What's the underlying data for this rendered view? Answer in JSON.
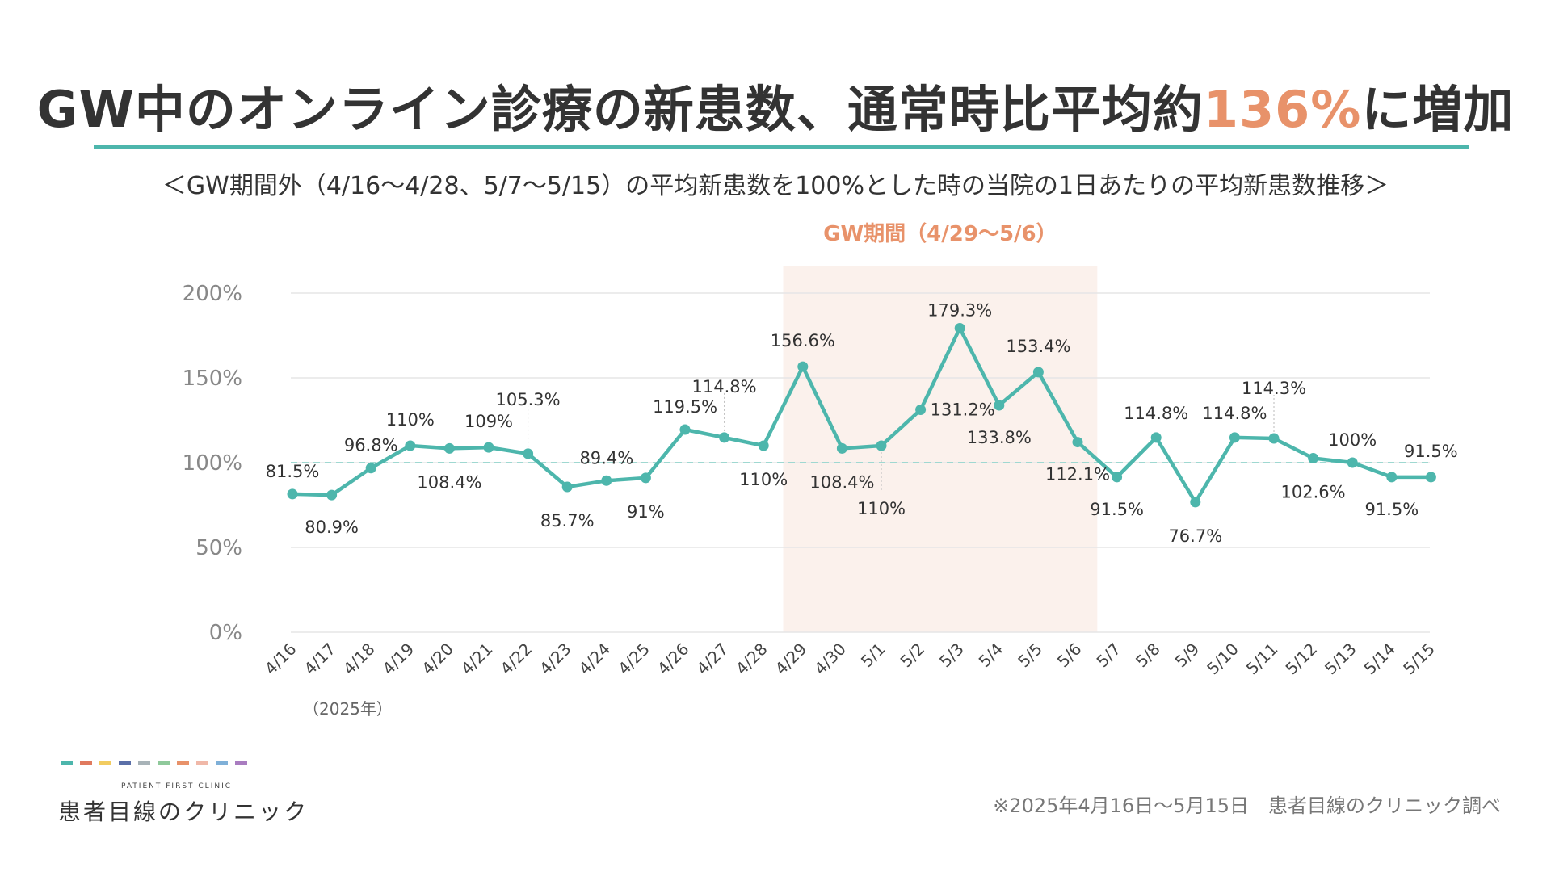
{
  "title": {
    "prefix": "GW中のオンライン診療の新患数、通常時比平均約",
    "highlight": "136%",
    "suffix": "に増加"
  },
  "subtitle": "＜GW期間外（4/16〜4/28、5/7〜5/15）の平均新患数を100%とした時の当院の1日あたりの平均新患数推移＞",
  "colors": {
    "line": "#4db6ac",
    "highlight": "#e8926a",
    "gw_band": "#fbf1ec"
  },
  "chart_data": {
    "type": "line",
    "title": "",
    "xlabel": "",
    "ylabel": "",
    "ylim": [
      0,
      200
    ],
    "y_ticks": [
      "0%",
      "50%",
      "100%",
      "150%",
      "200%"
    ],
    "grid": true,
    "reference_line": 100,
    "gw_period": {
      "label": "GW期間（4/29〜5/6）",
      "start": "4/29",
      "end": "5/6"
    },
    "year_note": "（2025年）",
    "categories": [
      "4/16",
      "4/17",
      "4/18",
      "4/19",
      "4/20",
      "4/21",
      "4/22",
      "4/23",
      "4/24",
      "4/25",
      "4/26",
      "4/27",
      "4/28",
      "4/29",
      "4/30",
      "5/1",
      "5/2",
      "5/3",
      "5/4",
      "5/5",
      "5/6",
      "5/7",
      "5/8",
      "5/9",
      "5/10",
      "5/11",
      "5/12",
      "5/13",
      "5/14",
      "5/15"
    ],
    "values": [
      81.5,
      80.9,
      96.8,
      110,
      108.4,
      109,
      105.3,
      85.7,
      89.4,
      91,
      119.5,
      114.8,
      110,
      156.6,
      108.4,
      110,
      131.2,
      179.3,
      133.8,
      153.4,
      112.1,
      91.5,
      114.8,
      76.7,
      114.8,
      114.3,
      102.6,
      100,
      91.5,
      91.5
    ],
    "labels": [
      "81.5%",
      "80.9%",
      "96.8%",
      "110%",
      "108.4%",
      "109%",
      "105.3%",
      "85.7%",
      "89.4%",
      "91%",
      "119.5%",
      "114.8%",
      "110%",
      "156.6%",
      "108.4%",
      "110%",
      "131.2%",
      "179.3%",
      "133.8%",
      "153.4%",
      "112.1%",
      "91.5%",
      "114.8%",
      "76.7%",
      "114.8%",
      "114.3%",
      "102.6%",
      "100%",
      "91.5%",
      "91.5%"
    ]
  },
  "brand": {
    "small": "PATIENT FIRST CLINIC",
    "name": "患者目線のクリニック",
    "dash_colors": [
      "#4db6ac",
      "#e07a5f",
      "#f2cc60",
      "#5b6fa8",
      "#a8b3b8",
      "#8fc99b",
      "#e8926a",
      "#f0b8a8",
      "#7fb0d8",
      "#a97cc0"
    ]
  },
  "footnote": "※2025年4月16日〜5月15日　患者目線のクリニック調べ"
}
